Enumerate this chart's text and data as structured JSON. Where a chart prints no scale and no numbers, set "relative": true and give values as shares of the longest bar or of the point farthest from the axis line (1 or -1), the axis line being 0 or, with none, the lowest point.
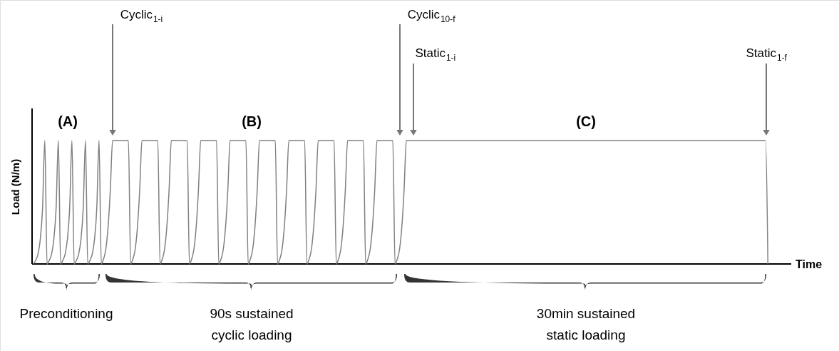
{
  "chart_data": {
    "type": "line",
    "relative": true,
    "xlabel": "Time",
    "ylabel": "Load (N/m)",
    "categories": [
      null,
      null,
      null,
      null,
      null,
      null,
      null,
      null,
      null,
      null,
      null,
      null,
      null,
      null,
      null,
      null,
      null,
      null,
      null,
      null,
      null,
      null,
      null,
      null,
      null,
      null,
      null,
      null,
      null,
      null,
      null,
      null,
      null,
      null,
      null,
      null,
      null,
      null,
      null,
      null,
      null,
      null,
      null,
      null,
      null,
      null,
      null,
      null,
      null,
      null,
      null,
      null,
      null,
      null,
      null,
      null,
      null,
      null,
      null,
      null,
      null,
      null,
      null,
      null,
      null,
      null,
      null,
      null,
      null,
      null,
      null,
      null,
      null,
      null,
      null,
      null,
      null,
      null,
      null,
      null,
      null,
      null,
      null,
      null,
      null,
      null,
      null,
      null,
      null,
      null,
      null,
      null,
      null,
      null,
      null,
      null,
      null,
      null,
      null,
      null,
      null,
      null,
      null,
      null,
      null,
      null,
      null,
      null,
      null,
      null,
      null,
      null,
      null,
      null,
      null,
      null,
      null,
      null,
      null,
      null,
      null,
      null,
      null,
      null,
      null,
      null,
      null,
      null,
      null,
      null,
      null,
      null,
      null,
      null,
      null,
      null,
      null,
      null,
      null,
      null,
      null,
      null,
      null,
      null,
      null,
      null,
      null,
      null,
      null,
      null,
      null,
      null,
      null,
      null,
      null,
      null,
      null,
      null,
      null,
      null,
      null,
      null,
      null,
      null,
      null,
      null,
      null,
      null,
      null,
      null,
      null,
      null,
      null,
      null,
      null,
      null,
      null,
      null,
      null,
      null,
      null,
      null,
      null,
      null,
      null,
      null,
      null,
      null,
      null,
      null,
      null,
      null,
      null,
      null,
      null,
      null,
      null,
      null,
      null,
      null,
      null,
      null,
      null,
      null,
      null,
      null,
      null,
      null,
      null,
      null,
      null,
      null,
      null,
      null,
      null,
      null,
      null,
      null,
      null,
      null,
      null,
      null,
      null,
      null,
      null,
      null,
      null,
      null,
      null,
      null,
      null,
      null,
      null,
      null,
      null,
      null,
      null,
      null,
      null,
      null,
      null,
      null,
      null,
      null,
      null,
      null,
      null,
      null,
      null,
      null,
      null,
      null,
      null,
      null,
      null,
      null,
      null,
      null,
      null,
      null,
      null,
      null,
      null,
      null,
      null,
      null,
      null,
      null,
      null,
      null,
      null,
      null,
      null,
      null,
      null,
      null,
      null,
      null,
      null,
      null,
      null,
      null,
      null,
      null,
      null,
      null,
      null,
      null,
      null,
      null,
      null,
      null,
      null,
      null,
      null,
      null,
      null,
      null,
      null,
      null,
      null,
      null,
      null,
      null,
      null,
      null,
      null,
      null,
      null,
      null,
      null,
      null,
      null,
      null,
      null,
      null,
      null,
      null,
      null,
      null,
      null,
      null,
      null,
      null,
      null,
      null
    ],
    "series": [
      {
        "color": "#808080",
        "values": [
          0,
          0.03,
          0.08,
          0.2,
          0.45,
          1,
          0,
          0.03,
          0.08,
          0.2,
          0.45,
          1,
          0,
          0.03,
          0.08,
          0.2,
          0.45,
          1,
          0,
          0.03,
          0.08,
          0.2,
          0.45,
          1,
          0,
          0.03,
          0.08,
          0.2,
          0.45,
          1,
          0,
          0.04,
          0.12,
          0.3,
          0.6,
          1,
          1,
          1,
          1,
          1,
          1,
          1,
          1,
          0,
          0.04,
          0.12,
          0.3,
          0.6,
          1,
          1,
          1,
          1,
          1,
          1,
          1,
          1,
          0,
          0.04,
          0.12,
          0.3,
          0.6,
          1,
          1,
          1,
          1,
          1,
          1,
          1,
          1,
          0,
          0.04,
          0.12,
          0.3,
          0.6,
          1,
          1,
          1,
          1,
          1,
          1,
          1,
          1,
          0,
          0.04,
          0.12,
          0.3,
          0.6,
          1,
          1,
          1,
          1,
          1,
          1,
          1,
          1,
          0,
          0.04,
          0.12,
          0.3,
          0.6,
          1,
          1,
          1,
          1,
          1,
          1,
          1,
          1,
          0,
          0.04,
          0.12,
          0.3,
          0.6,
          1,
          1,
          1,
          1,
          1,
          1,
          1,
          1,
          0,
          0.04,
          0.12,
          0.3,
          0.6,
          1,
          1,
          1,
          1,
          1,
          1,
          1,
          1,
          0,
          0.04,
          0.12,
          0.3,
          0.6,
          1,
          1,
          1,
          1,
          1,
          1,
          1,
          1,
          0,
          0.04,
          0.12,
          0.3,
          0.6,
          1,
          1,
          1,
          1,
          1,
          1,
          1,
          1,
          0,
          0.04,
          0.12,
          0.3,
          0.6,
          1,
          1,
          1,
          1,
          1,
          1,
          1,
          1,
          1,
          1,
          1,
          1,
          1,
          1,
          1,
          1,
          1,
          1,
          1,
          1,
          1,
          1,
          1,
          1,
          1,
          1,
          1,
          1,
          1,
          1,
          1,
          1,
          1,
          1,
          1,
          1,
          1,
          1,
          1,
          1,
          1,
          1,
          1,
          1,
          1,
          1,
          1,
          1,
          1,
          1,
          1,
          1,
          1,
          1,
          1,
          1,
          1,
          1,
          1,
          1,
          1,
          1,
          1,
          1,
          1,
          1,
          1,
          1,
          1,
          1,
          1,
          1,
          1,
          1,
          1,
          1,
          1,
          1,
          1,
          1,
          1,
          1,
          1,
          1,
          1,
          1,
          1,
          1,
          1,
          1,
          1,
          1,
          1,
          1,
          1,
          1,
          1,
          1,
          1,
          1,
          1,
          1,
          1,
          1,
          1,
          1,
          1,
          1,
          1,
          1,
          1,
          1,
          1,
          1,
          1,
          1,
          1,
          1,
          1,
          1,
          1,
          1,
          1,
          1,
          1,
          1,
          1,
          1,
          1,
          1,
          1,
          1,
          1,
          1,
          1,
          1,
          1,
          1,
          1,
          1,
          1,
          1,
          1,
          1,
          1,
          1,
          1,
          1,
          1,
          1,
          1,
          1,
          1,
          1,
          1,
          1,
          1,
          1,
          1,
          1,
          0
        ]
      }
    ],
    "annotations": [
      "Cyclic$_{1-i}$",
      "Cyclic$_{10-f}$",
      "Static$_{1-i}$",
      "Static$_{1-f}$",
      "(A)",
      "(B)",
      "(C)",
      "Preconditioning",
      "90s sustained\ncyclic loading",
      "30min sustained\nstatic loading"
    ]
  }
}
